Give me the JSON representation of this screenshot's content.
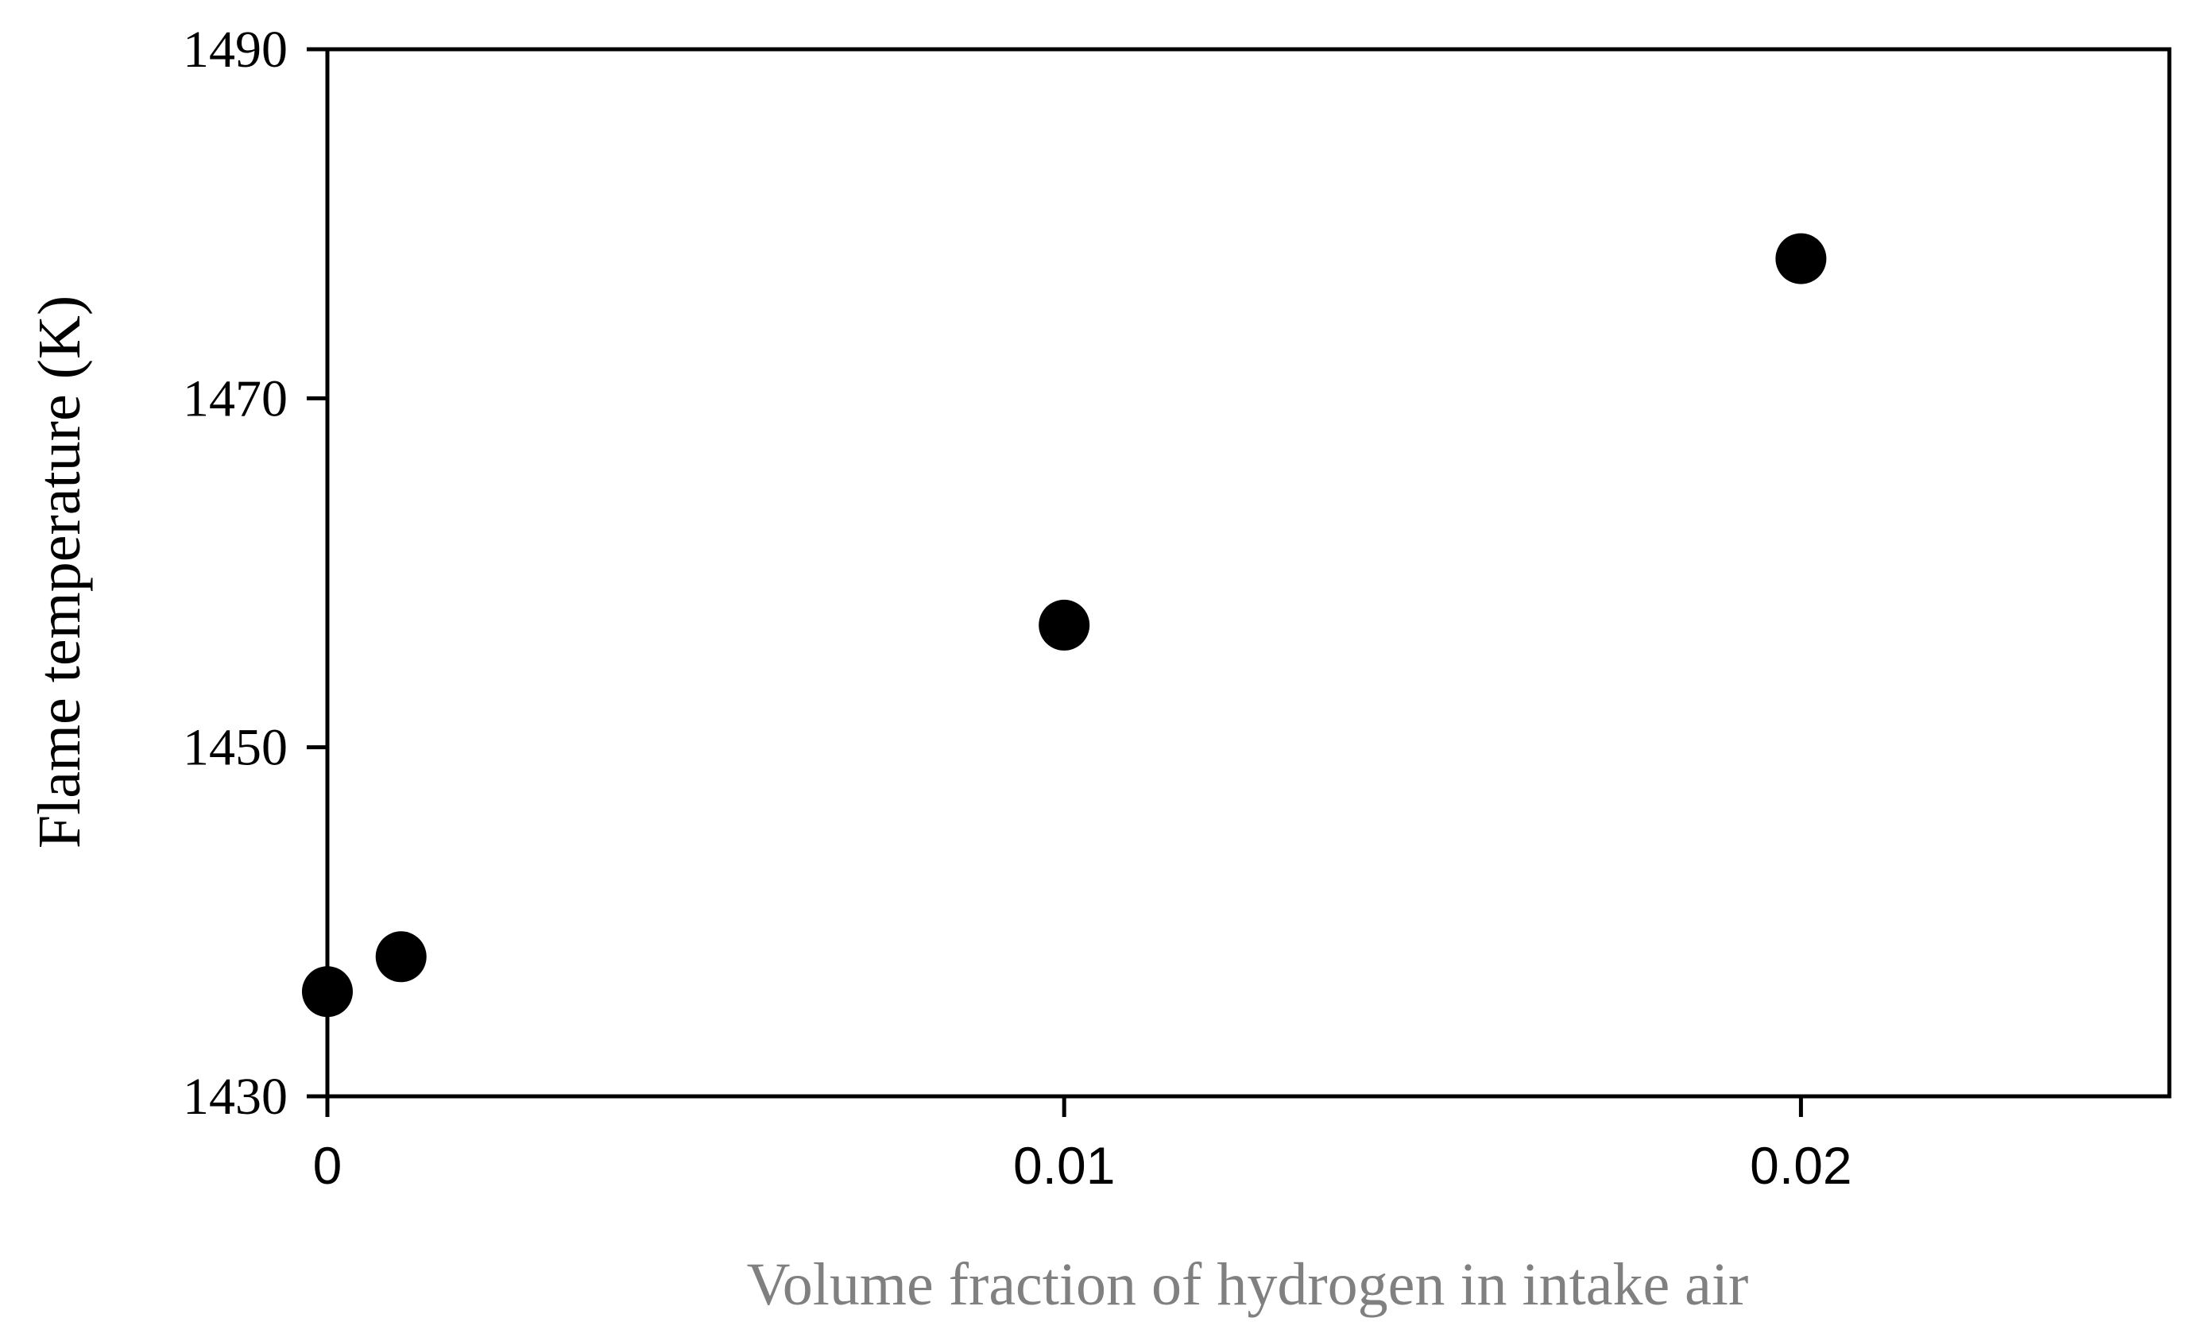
{
  "chart_data": {
    "type": "scatter",
    "title": "",
    "xlabel": "Volume fraction of hydrogen in intake air",
    "ylabel": "Flame temperature (K)",
    "xlim": [
      0,
      0.025
    ],
    "ylim": [
      1430,
      1490
    ],
    "x_ticks": [
      0,
      0.01,
      0.02
    ],
    "x_tick_labels": [
      "0",
      "0.01",
      "0.02"
    ],
    "y_ticks": [
      1430,
      1450,
      1470,
      1490
    ],
    "y_tick_labels": [
      "1430",
      "1450",
      "1470",
      "1490"
    ],
    "grid": false,
    "legend": "none",
    "series": [
      {
        "x": [
          0,
          0.001,
          0.01,
          0.02
        ],
        "y": [
          1436,
          1438,
          1457,
          1478
        ]
      }
    ],
    "colors": {
      "marker": "#000000",
      "axis": "#000000",
      "xlabel_text": "#808080"
    }
  }
}
